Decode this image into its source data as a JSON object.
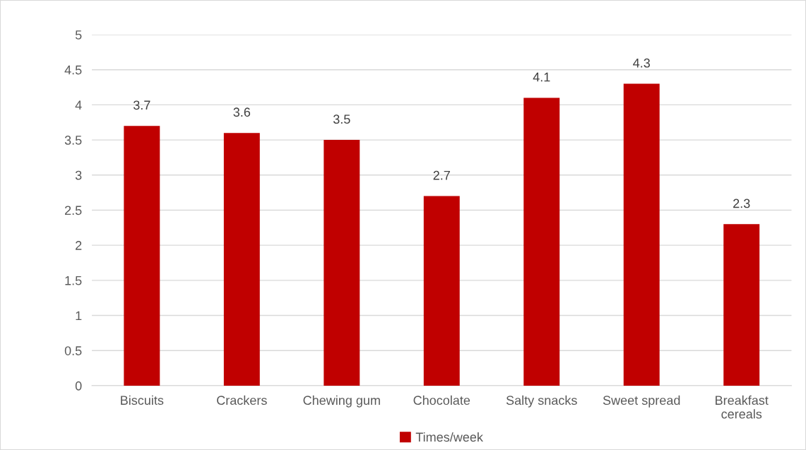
{
  "chart_data": {
    "type": "bar",
    "categories": [
      "Biscuits",
      "Crackers",
      "Chewing gum",
      "Chocolate",
      "Salty snacks",
      "Sweet spread",
      "Breakfast cereals"
    ],
    "series": [
      {
        "name": "Times/week",
        "color": "#c00000",
        "values": [
          3.7,
          3.6,
          3.5,
          2.7,
          4.1,
          4.3,
          2.3
        ]
      }
    ],
    "ylim": [
      0,
      5
    ],
    "yticks": [
      0,
      0.5,
      1,
      1.5,
      2,
      2.5,
      3,
      3.5,
      4,
      4.5,
      5
    ],
    "grid": "y",
    "legend": "bottom",
    "data_labels": true
  }
}
